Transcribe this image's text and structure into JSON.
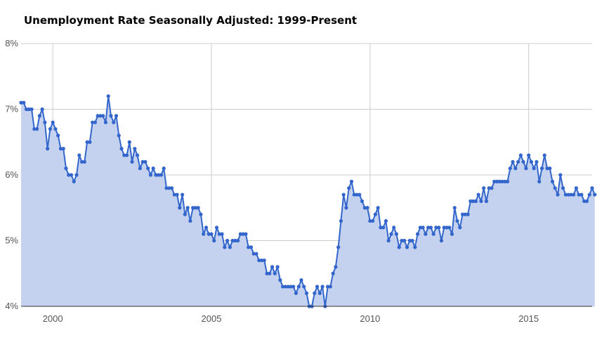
{
  "chart_data": {
    "type": "area",
    "title": "Unemployment Rate Seasonally Adjusted: 1999-Present",
    "xlabel": "",
    "ylabel": "",
    "x_start": "1999-01",
    "xlim": [
      1999.0,
      2017.0
    ],
    "ylim": [
      4,
      8
    ],
    "x_ticks": [
      2000,
      2005,
      2010,
      2015
    ],
    "x_tick_labels": [
      "2000",
      "2005",
      "2010",
      "2015"
    ],
    "y_ticks": [
      4,
      5,
      6,
      7,
      8
    ],
    "y_tick_labels": [
      "4%",
      "5%",
      "6%",
      "7%",
      "8%"
    ],
    "grid": true,
    "legend": "none",
    "colors": {
      "line": "#3366cc",
      "fill": "#c4d2f0",
      "grid": "#cccccc",
      "axis": "#333333"
    },
    "series": [
      {
        "values": [
          7.1,
          7.1,
          7.0,
          7.0,
          7.0,
          6.7,
          6.7,
          6.9,
          7.0,
          6.8,
          6.4,
          6.7,
          6.8,
          6.7,
          6.6,
          6.4,
          6.4,
          6.1,
          6.0,
          6.0,
          5.9,
          6.0,
          6.3,
          6.2,
          6.2,
          6.5,
          6.5,
          6.8,
          6.8,
          6.9,
          6.9,
          6.9,
          6.8,
          7.2,
          6.9,
          6.8,
          6.9,
          6.6,
          6.4,
          6.3,
          6.3,
          6.5,
          6.2,
          6.4,
          6.3,
          6.1,
          6.2,
          6.2,
          6.1,
          6.0,
          6.1,
          6.0,
          6.0,
          6.0,
          6.1,
          5.8,
          5.8,
          5.8,
          5.7,
          5.7,
          5.5,
          5.7,
          5.4,
          5.5,
          5.3,
          5.5,
          5.5,
          5.5,
          5.4,
          5.1,
          5.2,
          5.1,
          5.1,
          5.0,
          5.2,
          5.1,
          5.1,
          4.9,
          5.0,
          4.9,
          5.0,
          5.0,
          5.0,
          5.1,
          5.1,
          5.1,
          4.9,
          4.9,
          4.8,
          4.8,
          4.7,
          4.7,
          4.7,
          4.5,
          4.5,
          4.6,
          4.5,
          4.6,
          4.4,
          4.3,
          4.3,
          4.3,
          4.3,
          4.3,
          4.2,
          4.3,
          4.4,
          4.3,
          4.2,
          4.0,
          4.0,
          4.2,
          4.3,
          4.2,
          4.3,
          4.0,
          4.3,
          4.3,
          4.5,
          4.6,
          4.9,
          5.3,
          5.7,
          5.5,
          5.8,
          5.9,
          5.7,
          5.7,
          5.7,
          5.6,
          5.5,
          5.5,
          5.3,
          5.3,
          5.4,
          5.5,
          5.2,
          5.2,
          5.3,
          5.0,
          5.1,
          5.2,
          5.1,
          4.9,
          5.0,
          5.0,
          4.9,
          5.0,
          5.0,
          4.9,
          5.1,
          5.2,
          5.2,
          5.1,
          5.2,
          5.2,
          5.1,
          5.2,
          5.2,
          5.0,
          5.2,
          5.2,
          5.2,
          5.1,
          5.5,
          5.3,
          5.2,
          5.4,
          5.4,
          5.4,
          5.6,
          5.6,
          5.6,
          5.7,
          5.6,
          5.8,
          5.6,
          5.8,
          5.8,
          5.9,
          5.9,
          5.9,
          5.9,
          5.9,
          5.9,
          6.1,
          6.2,
          6.1,
          6.2,
          6.3,
          6.2,
          6.1,
          6.3,
          6.2,
          6.1,
          6.2,
          5.9,
          6.1,
          6.3,
          6.1,
          6.1,
          5.9,
          5.8,
          5.7,
          6.0,
          5.8,
          5.7,
          5.7,
          5.7,
          5.7,
          5.8,
          5.7,
          5.7,
          5.6,
          5.6,
          5.7,
          5.8,
          5.7
        ]
      }
    ]
  }
}
